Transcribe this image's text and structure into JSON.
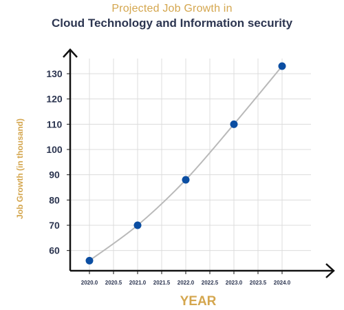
{
  "chart_data": {
    "type": "line",
    "title": "Projected Job Growth in",
    "subtitle": "Cloud Technology and Information security",
    "xlabel": "YEAR",
    "ylabel": "Job Growth (in thousand)",
    "x_ticks": [
      "2020.0",
      "2020.5",
      "2021.0",
      "2021.5",
      "2022.0",
      "2022.5",
      "2023.0",
      "2023.5",
      "2024.0"
    ],
    "y_ticks": [
      "60",
      "70",
      "80",
      "90",
      "100",
      "110",
      "120",
      "130"
    ],
    "xlim": [
      2019.6,
      2024.6
    ],
    "ylim": [
      52,
      136
    ],
    "grid": true,
    "series": [
      {
        "x": [
          2020,
          2021,
          2022,
          2023,
          2024
        ],
        "y": [
          56,
          70,
          88,
          110,
          133
        ]
      }
    ],
    "colors": {
      "line": "#b9b9b9",
      "marker": "#0b4ea2",
      "grid": "#dcdcdc",
      "axis": "#111111",
      "title_gold": "#d4a64e",
      "title_navy": "#2c3550"
    }
  }
}
